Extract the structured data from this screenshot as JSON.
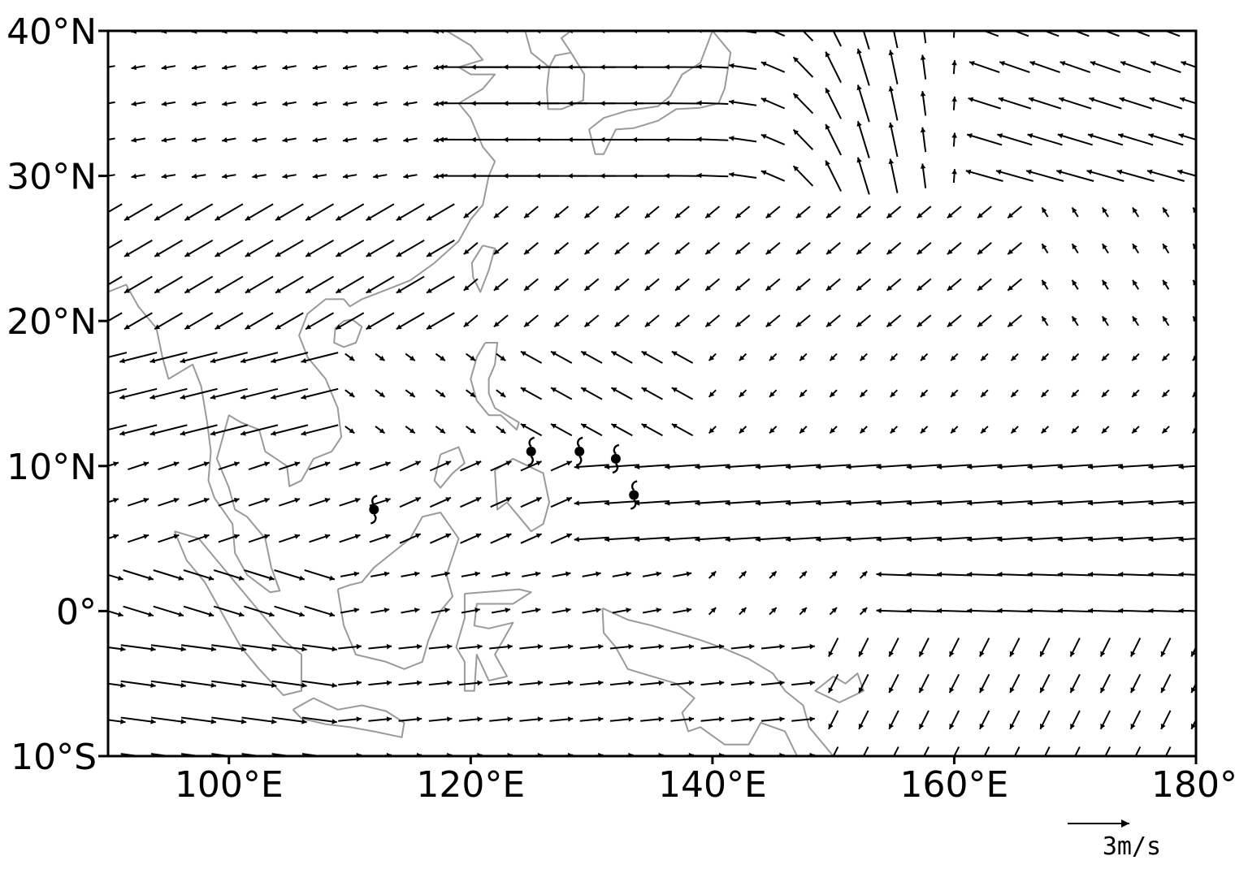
{
  "chart_data": {
    "type": "vector_field_map",
    "title": "",
    "x_range": [
      90,
      180
    ],
    "y_range": [
      -10,
      40
    ],
    "x_ticks": [
      {
        "value": 100,
        "label": "100°E"
      },
      {
        "value": 120,
        "label": "120°E"
      },
      {
        "value": 140,
        "label": "140°E"
      },
      {
        "value": 160,
        "label": "160°E"
      },
      {
        "value": 180,
        "label": "180°"
      }
    ],
    "y_ticks": [
      {
        "value": 40,
        "label": "40°N"
      },
      {
        "value": 30,
        "label": "30°N"
      },
      {
        "value": 20,
        "label": "20°N"
      },
      {
        "value": 10,
        "label": "10°N"
      },
      {
        "value": 0,
        "label": "0°"
      },
      {
        "value": -10,
        "label": "10°S"
      }
    ],
    "grid_spacing": {
      "lon": 2.5,
      "lat": 2.5
    },
    "reference_vector": {
      "magnitude": 3,
      "label": "3m/s"
    },
    "vector_color": "#000000",
    "coastline_color": "#9a9a9a",
    "typhoon_markers": [
      {
        "lon": 125,
        "lat": 11
      },
      {
        "lon": 129,
        "lat": 11
      },
      {
        "lon": 132,
        "lat": 10.5
      },
      {
        "lon": 133.5,
        "lat": 8
      },
      {
        "lon": 112,
        "lat": 7
      }
    ],
    "coastlines": [
      [
        [
          118,
          40
        ],
        [
          120,
          39
        ],
        [
          121,
          38
        ],
        [
          119,
          37.5
        ],
        [
          120,
          37
        ],
        [
          122,
          37
        ],
        [
          121,
          36
        ],
        [
          119,
          35
        ],
        [
          120,
          34
        ],
        [
          121,
          32
        ],
        [
          122,
          31
        ],
        [
          121.5,
          30
        ],
        [
          121,
          28
        ],
        [
          120,
          27
        ],
        [
          119,
          25.5
        ],
        [
          117,
          24
        ],
        [
          115,
          22.8
        ],
        [
          113.5,
          22.3
        ],
        [
          111,
          21.5
        ],
        [
          110,
          21
        ],
        [
          109.5,
          21.5
        ],
        [
          108,
          21.5
        ],
        [
          106.5,
          20.5
        ],
        [
          105.8,
          19
        ],
        [
          106.5,
          17.5
        ],
        [
          108,
          16
        ],
        [
          109,
          14
        ],
        [
          109.3,
          12
        ],
        [
          108.5,
          11
        ],
        [
          107,
          10.5
        ],
        [
          106,
          9
        ],
        [
          105,
          8.6
        ],
        [
          104.8,
          10
        ],
        [
          103,
          11
        ],
        [
          102.5,
          12.5
        ],
        [
          101,
          13
        ],
        [
          100,
          13.5
        ],
        [
          99.5,
          12
        ],
        [
          99,
          10.5
        ],
        [
          100,
          8.5
        ],
        [
          100.5,
          7
        ],
        [
          101.5,
          6.5
        ],
        [
          103,
          5
        ],
        [
          103.5,
          3
        ],
        [
          104.2,
          1.4
        ],
        [
          103.4,
          1.3
        ],
        [
          101.5,
          2.5
        ],
        [
          100.5,
          4
        ],
        [
          100.3,
          6
        ],
        [
          98.8,
          7.8
        ],
        [
          98.3,
          9
        ],
        [
          98.5,
          11
        ],
        [
          98.2,
          13
        ],
        [
          97.7,
          15.5
        ],
        [
          97,
          17
        ],
        [
          95,
          16
        ],
        [
          94.5,
          17.5
        ],
        [
          94,
          19.5
        ],
        [
          92.5,
          21
        ],
        [
          91.5,
          22.5
        ],
        [
          90,
          22
        ]
      ],
      [
        [
          110.2,
          20.1
        ],
        [
          111,
          19.6
        ],
        [
          110.5,
          18.5
        ],
        [
          109.5,
          18.2
        ],
        [
          108.7,
          18.5
        ],
        [
          108.8,
          19.5
        ],
        [
          109.5,
          20
        ],
        [
          110.2,
          20.1
        ]
      ],
      [
        [
          121,
          25.2
        ],
        [
          122,
          25
        ],
        [
          121.5,
          23.5
        ],
        [
          120.8,
          22
        ],
        [
          120.2,
          23
        ],
        [
          120.1,
          24
        ],
        [
          121,
          25.2
        ]
      ],
      [
        [
          95.5,
          5.5
        ],
        [
          97.5,
          5
        ],
        [
          98.5,
          4
        ],
        [
          100.5,
          2
        ],
        [
          102,
          0.5
        ],
        [
          103.5,
          -1
        ],
        [
          104.5,
          -2
        ],
        [
          106,
          -3
        ],
        [
          106,
          -5.5
        ],
        [
          104.5,
          -5.8
        ],
        [
          102.5,
          -4
        ],
        [
          101,
          -2.5
        ],
        [
          100,
          -1
        ],
        [
          99,
          0.5
        ],
        [
          98,
          2
        ],
        [
          96.5,
          3.5
        ],
        [
          95.5,
          5.5
        ]
      ],
      [
        [
          105.3,
          -6.8
        ],
        [
          107,
          -6
        ],
        [
          109,
          -6.8
        ],
        [
          111,
          -6.5
        ],
        [
          113,
          -6.9
        ],
        [
          114.5,
          -7.7
        ],
        [
          114.3,
          -8.7
        ],
        [
          112,
          -8.3
        ],
        [
          110,
          -8
        ],
        [
          108,
          -7.8
        ],
        [
          106,
          -7.4
        ],
        [
          105.3,
          -6.8
        ]
      ],
      [
        [
          109,
          1.5
        ],
        [
          109.5,
          -1
        ],
        [
          110.5,
          -3
        ],
        [
          113,
          -3.5
        ],
        [
          114.5,
          -4
        ],
        [
          116,
          -3.5
        ],
        [
          116.5,
          -2
        ],
        [
          117.5,
          0
        ],
        [
          118.5,
          1
        ],
        [
          118,
          2.5
        ],
        [
          119,
          5
        ],
        [
          117.5,
          6.8
        ],
        [
          116,
          6.5
        ],
        [
          115,
          5
        ],
        [
          113.5,
          4
        ],
        [
          112,
          3
        ],
        [
          111,
          2
        ],
        [
          110,
          1.8
        ],
        [
          109,
          1.5
        ]
      ],
      [
        [
          119.5,
          1.2
        ],
        [
          121,
          1.3
        ],
        [
          124,
          1.5
        ],
        [
          125,
          1.3
        ],
        [
          123.5,
          0.5
        ],
        [
          120.5,
          0.5
        ],
        [
          120.3,
          -1
        ],
        [
          121.5,
          -1.2
        ],
        [
          123.5,
          -0.8
        ],
        [
          122,
          -3
        ],
        [
          123,
          -4.5
        ],
        [
          121.5,
          -4.8
        ],
        [
          120.5,
          -3
        ],
        [
          120.3,
          -5.5
        ],
        [
          119.5,
          -5.5
        ],
        [
          119.5,
          -3.5
        ],
        [
          118.8,
          -2.5
        ],
        [
          119.5,
          -0.5
        ],
        [
          119.5,
          1.2
        ]
      ],
      [
        [
          121.2,
          18.5
        ],
        [
          122.2,
          18.5
        ],
        [
          122,
          17
        ],
        [
          121.5,
          16
        ],
        [
          121.5,
          15
        ],
        [
          122,
          14
        ],
        [
          124,
          13
        ],
        [
          123.8,
          12.5
        ],
        [
          122.5,
          13.5
        ],
        [
          121.5,
          13.5
        ],
        [
          120.5,
          14.5
        ],
        [
          120,
          16
        ],
        [
          120.5,
          17.5
        ],
        [
          121.2,
          18.5
        ]
      ],
      [
        [
          122,
          9.7
        ],
        [
          123.5,
          10.5
        ],
        [
          126,
          9.5
        ],
        [
          126.5,
          7.5
        ],
        [
          126,
          6
        ],
        [
          125,
          5.5
        ],
        [
          124,
          6.5
        ],
        [
          123,
          7.5
        ],
        [
          122.2,
          7
        ],
        [
          122,
          9.7
        ]
      ],
      [
        [
          117.5,
          10.8
        ],
        [
          119,
          11.3
        ],
        [
          119.5,
          10.2
        ],
        [
          118.5,
          9.5
        ],
        [
          117.5,
          8.5
        ],
        [
          117,
          9
        ],
        [
          117.5,
          10.8
        ]
      ],
      [
        [
          130.9,
          0.2
        ],
        [
          133,
          -0.6
        ],
        [
          135,
          -1
        ],
        [
          137,
          -1.5
        ],
        [
          139,
          -2
        ],
        [
          141,
          -2.6
        ],
        [
          143,
          -3.3
        ],
        [
          145,
          -4.3
        ],
        [
          146,
          -5.5
        ],
        [
          147.5,
          -6.5
        ],
        [
          148,
          -8
        ],
        [
          149.5,
          -9.5
        ],
        [
          150.5,
          -10.5
        ],
        [
          147,
          -10
        ],
        [
          146,
          -8.3
        ],
        [
          144,
          -7.7
        ],
        [
          143,
          -9.2
        ],
        [
          141,
          -9.2
        ],
        [
          139,
          -8
        ],
        [
          138,
          -8.3
        ],
        [
          137.5,
          -7
        ],
        [
          138.5,
          -6
        ],
        [
          137,
          -5
        ],
        [
          135,
          -4.5
        ],
        [
          133,
          -4
        ],
        [
          132,
          -2.5
        ],
        [
          131,
          -1.5
        ],
        [
          130.9,
          0.2
        ]
      ],
      [
        [
          150,
          -4.5
        ],
        [
          151,
          -5
        ],
        [
          152,
          -4.3
        ],
        [
          152.5,
          -5.5
        ],
        [
          150.5,
          -6.3
        ],
        [
          148.5,
          -5.5
        ],
        [
          150,
          -4.5
        ]
      ],
      [
        [
          140,
          40
        ],
        [
          141.5,
          38.5
        ],
        [
          141,
          36
        ],
        [
          140.5,
          35
        ],
        [
          139,
          34.7
        ],
        [
          137,
          34.6
        ],
        [
          135.5,
          33.8
        ],
        [
          133.5,
          33.3
        ],
        [
          132,
          33.2
        ],
        [
          131,
          31.5
        ],
        [
          130.3,
          31.5
        ],
        [
          129.8,
          33.2
        ],
        [
          131,
          34
        ],
        [
          133,
          34.5
        ],
        [
          135.5,
          34.8
        ],
        [
          136.5,
          35.5
        ],
        [
          137.5,
          37
        ],
        [
          139,
          37.8
        ],
        [
          140,
          40
        ]
      ],
      [
        [
          141,
          40
        ],
        [
          143,
          42
        ],
        [
          144.5,
          43
        ],
        [
          145.5,
          43.5
        ],
        [
          143.5,
          42
        ],
        [
          141.5,
          41.5
        ],
        [
          141,
          40
        ]
      ],
      [
        [
          126.5,
          37.5
        ],
        [
          127,
          38.3
        ],
        [
          128.3,
          38.5
        ],
        [
          129.4,
          37
        ],
        [
          129.3,
          35.2
        ],
        [
          127.5,
          34.6
        ],
        [
          126.4,
          34.6
        ],
        [
          126.3,
          36
        ],
        [
          126.5,
          37.5
        ]
      ],
      [
        [
          124.5,
          40
        ],
        [
          125,
          38.5
        ],
        [
          126.5,
          37.5
        ]
      ],
      [
        [
          129.5,
          42.5
        ],
        [
          129.8,
          41
        ],
        [
          128.3,
          40
        ],
        [
          127.5,
          39.5
        ],
        [
          128.3,
          38.5
        ]
      ]
    ]
  }
}
